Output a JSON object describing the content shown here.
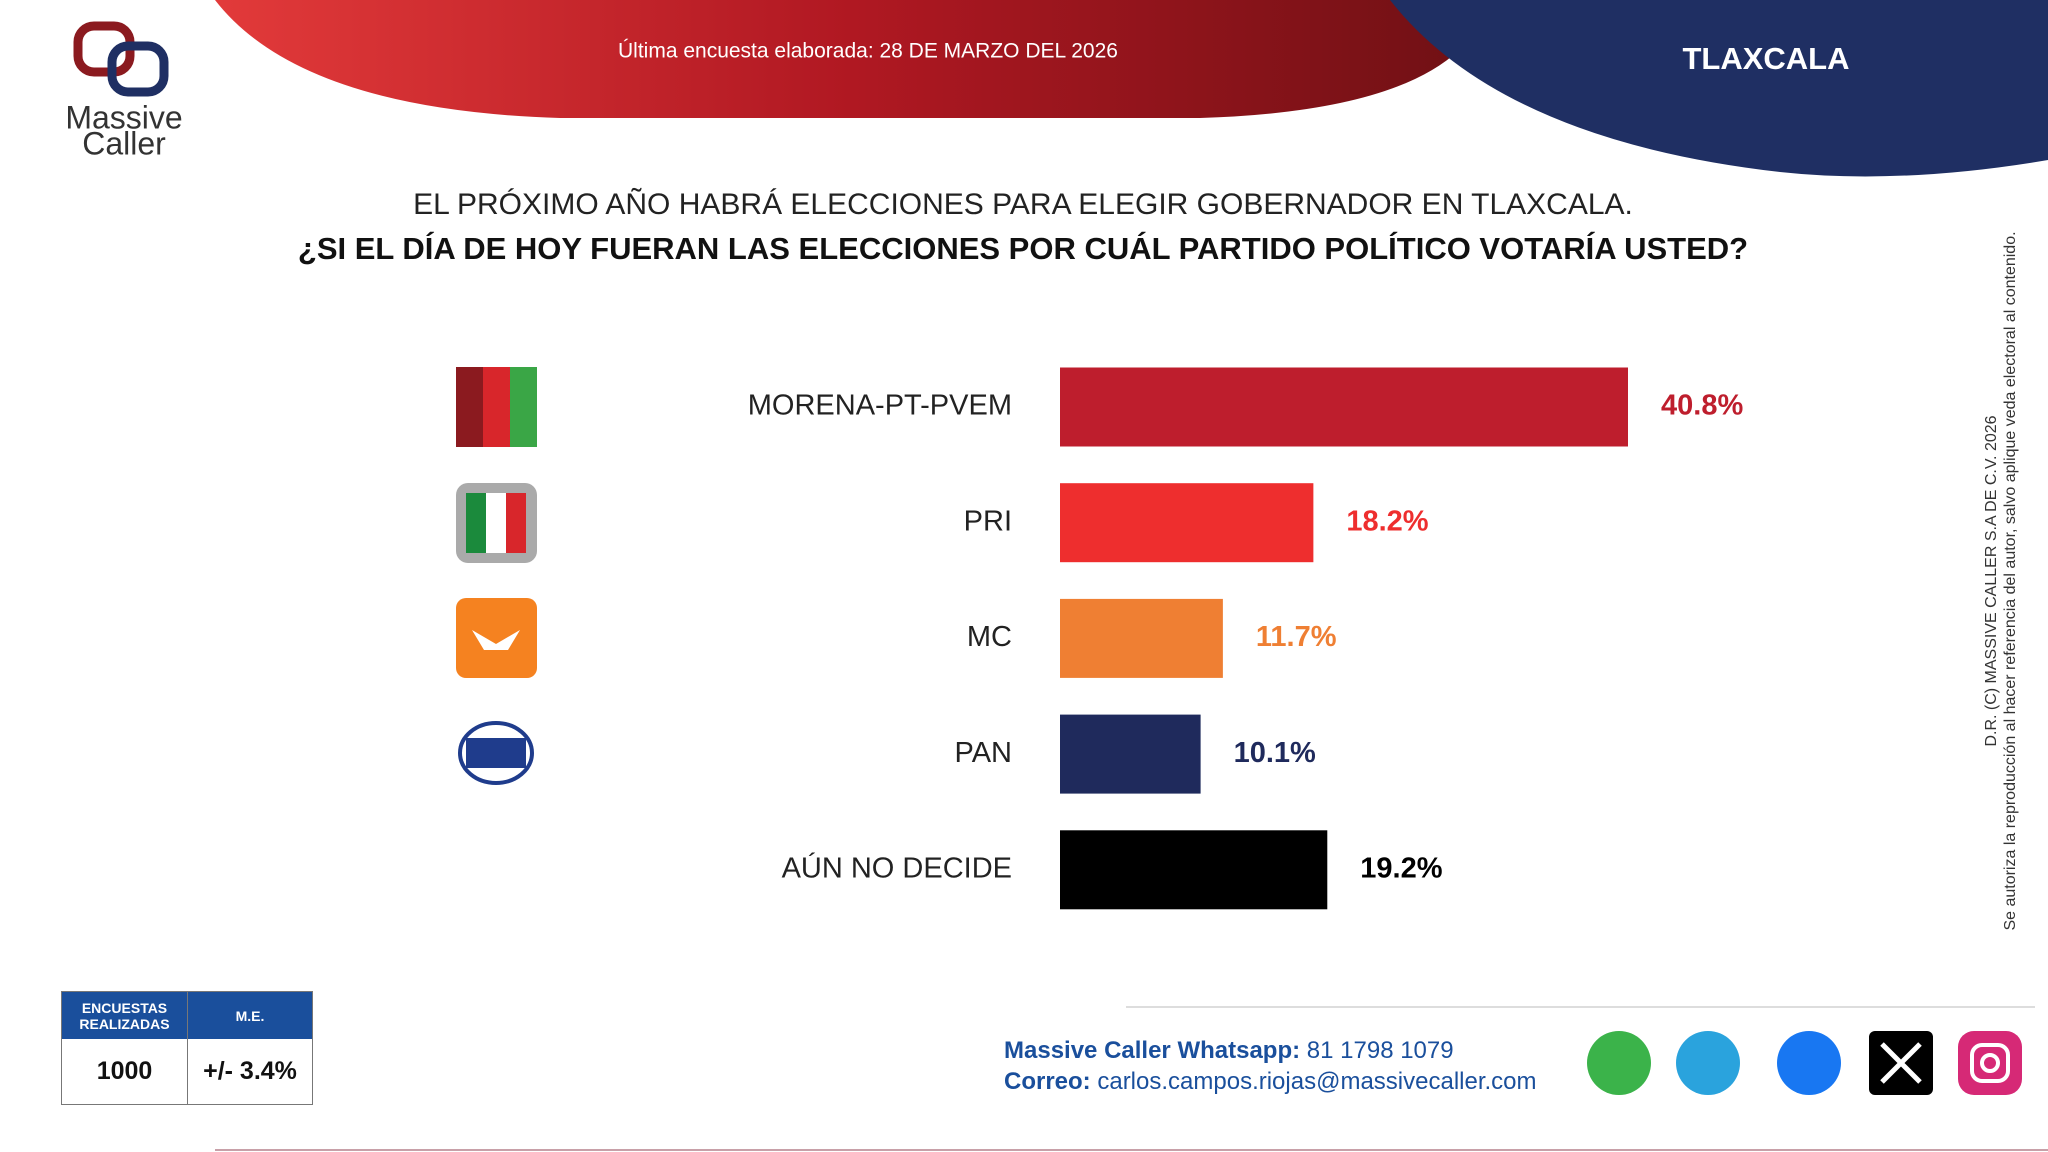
{
  "header": {
    "survey_date": "Última encuesta elaborada: 28 DE MARZO DEL 2026",
    "region": "TLAXCALA",
    "logo": [
      "Massive",
      "Caller"
    ]
  },
  "chart_data": {
    "type": "bar",
    "orientation": "horizontal",
    "title": "EL PRÓXIMO AÑO HABRÁ ELECCIONES PARA ELEGIR GOBERNADOR EN TLAXCALA.",
    "subtitle": "¿SI EL DÍA DE HOY FUERAN LAS ELECCIONES POR CUÁL PARTIDO POLÍTICO VOTARÍA USTED?",
    "categories": [
      "MORENA-PT-PVEM",
      "PRI",
      "MC",
      "PAN",
      "AÚN NO DECIDE"
    ],
    "values": [
      40.8,
      18.2,
      11.7,
      10.1,
      19.2
    ],
    "value_labels": [
      "40.8%",
      "18.2%",
      "11.7%",
      "10.1%",
      "19.2%"
    ],
    "colors": [
      "#be1e2d",
      "#ee2e2e",
      "#ef7f33",
      "#1f2a5c",
      "#000000"
    ]
  },
  "sidebar": {
    "copyright": "D.R. (C) MASSIVE CALLER S.A DE C.V. 2026",
    "notice": "Se autoriza la reproducción al hacer referencia del autor, salvo aplique veda electoral al contenido."
  },
  "sample_table": {
    "headers": [
      "ENCUESTAS REALIZADAS",
      "M.E."
    ],
    "row": [
      "1000",
      "+/- 3.4%"
    ]
  },
  "contact": {
    "whatsapp_label": "Massive Caller Whatsapp:",
    "whatsapp": "81 1798 1079",
    "email_label": "Correo:",
    "email": "carlos.campos.riojas@massivecaller.com"
  }
}
